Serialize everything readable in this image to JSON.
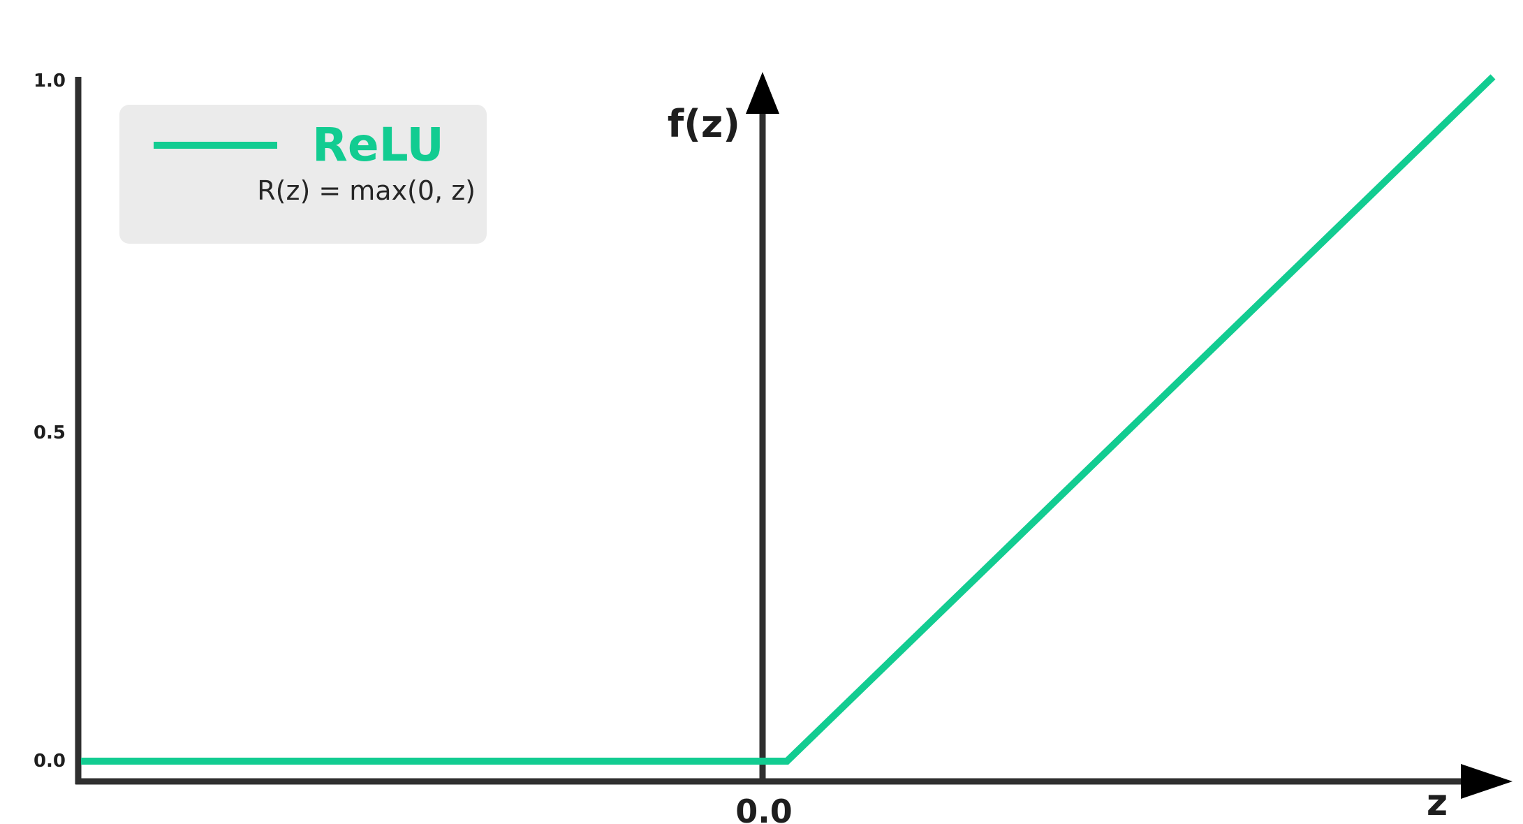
{
  "chart_data": {
    "type": "line",
    "series": [
      {
        "name": "ReLU",
        "x": [
          -1.0,
          0.0,
          1.0
        ],
        "values": [
          0.0,
          0.0,
          1.0
        ],
        "color": "#12cc91"
      }
    ],
    "legend": {
      "label": "ReLU",
      "formula": "R(z) = max(0, z)",
      "placement": "top-left",
      "background": "#ebebeb"
    },
    "xlabel": "z",
    "ylabel": "f(z)",
    "xlim": [
      -1.0,
      1.0
    ],
    "ylim": [
      0.0,
      1.0
    ],
    "x_ticks": [
      "0.0"
    ],
    "y_ticks": [
      "0.0",
      "0.5",
      "1.0"
    ],
    "grid": false,
    "axis_color": "#2f2f2f"
  }
}
